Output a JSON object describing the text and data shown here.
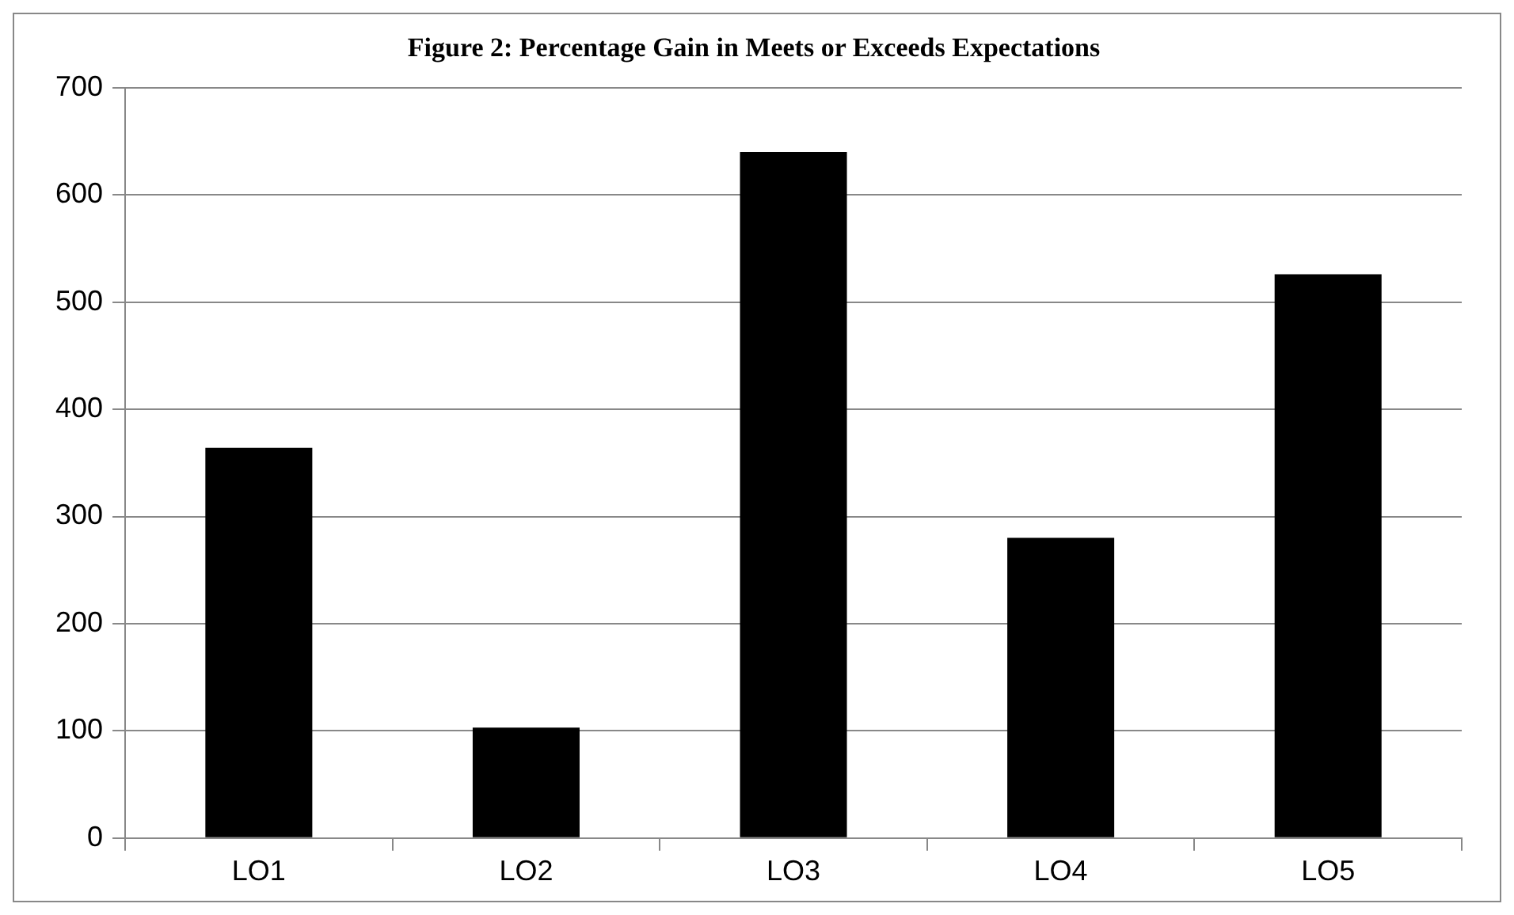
{
  "chart_data": {
    "type": "bar",
    "title": "Figure 2: Percentage Gain in Meets or Exceeds Expectations",
    "categories": [
      "LO1",
      "LO2",
      "LO3",
      "LO4",
      "LO5"
    ],
    "values": [
      364,
      103,
      640,
      280,
      526
    ],
    "color": "#000000",
    "ylim": [
      0,
      700
    ],
    "yticks": [
      0,
      100,
      200,
      300,
      400,
      500,
      600,
      700
    ],
    "grid": "y"
  }
}
